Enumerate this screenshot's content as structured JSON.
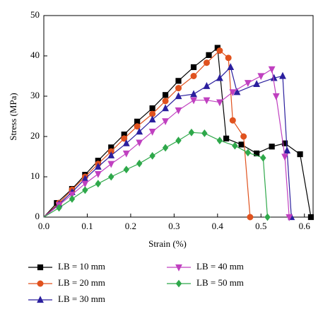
{
  "chart_data": {
    "type": "line",
    "x_label": "Strain (%)",
    "y_label": "Stress (MPa)",
    "xlim": [
      0,
      0.62
    ],
    "ylim": [
      0,
      50
    ],
    "xticks": [
      {
        "value": 0,
        "label": "0.0"
      },
      0.1,
      0.2,
      0.3,
      0.4,
      0.5,
      0.6
    ],
    "yticks": [
      0,
      10,
      20,
      30,
      40,
      50
    ],
    "series": [
      {
        "name": "LB = 10 mm",
        "color": "#000000",
        "marker": "square",
        "x": [
          0,
          0.03,
          0.065,
          0.095,
          0.125,
          0.155,
          0.185,
          0.215,
          0.25,
          0.28,
          0.31,
          0.345,
          0.38,
          0.4,
          0.42,
          0.455,
          0.49,
          0.525,
          0.555,
          0.59,
          0.615
        ],
        "values": [
          0,
          3.5,
          7,
          10.5,
          14,
          17.3,
          20.5,
          23.7,
          27,
          30.3,
          33.8,
          37.2,
          40.2,
          42,
          19.5,
          18,
          15.8,
          17.5,
          18.3,
          15.6,
          0
        ]
      },
      {
        "name": "LB = 20 mm",
        "color": "#e0521e",
        "marker": "circle",
        "x": [
          0,
          0.035,
          0.065,
          0.095,
          0.125,
          0.155,
          0.185,
          0.215,
          0.25,
          0.28,
          0.31,
          0.345,
          0.375,
          0.405,
          0.425,
          0.435,
          0.46,
          0.475
        ],
        "values": [
          0,
          3.5,
          6.8,
          10,
          13.2,
          16.3,
          19.5,
          22.5,
          25.6,
          28.8,
          32,
          35,
          38.3,
          41.3,
          39.5,
          24,
          20,
          0
        ]
      },
      {
        "name": "LB = 30 mm",
        "color": "#2b1f9e",
        "marker": "triangle-up",
        "x": [
          0,
          0.035,
          0.065,
          0.095,
          0.125,
          0.155,
          0.19,
          0.22,
          0.25,
          0.28,
          0.31,
          0.345,
          0.375,
          0.405,
          0.43,
          0.445,
          0.49,
          0.53,
          0.55,
          0.56,
          0.57
        ],
        "values": [
          0,
          3.2,
          6.2,
          9.5,
          12.5,
          15.3,
          18.3,
          21.2,
          24.2,
          27,
          30,
          30.5,
          32.5,
          34.5,
          37.2,
          31,
          33,
          34.5,
          35,
          16.5,
          0
        ]
      },
      {
        "name": "LB = 40 mm",
        "color": "#c040c0",
        "marker": "triangle-down",
        "x": [
          0,
          0.035,
          0.065,
          0.095,
          0.125,
          0.155,
          0.19,
          0.22,
          0.25,
          0.28,
          0.31,
          0.345,
          0.375,
          0.405,
          0.435,
          0.47,
          0.5,
          0.525,
          0.535,
          0.555,
          0.565
        ],
        "values": [
          0,
          3,
          5.6,
          8.3,
          10.7,
          13.2,
          15.8,
          18.5,
          21.2,
          23.8,
          26.5,
          29,
          29,
          28.5,
          31,
          33.3,
          35,
          36.7,
          30,
          15,
          0
        ]
      },
      {
        "name": "LB = 50 mm",
        "color": "#2ea84a",
        "marker": "diamond",
        "x": [
          0,
          0.035,
          0.065,
          0.095,
          0.125,
          0.155,
          0.19,
          0.22,
          0.25,
          0.28,
          0.31,
          0.34,
          0.37,
          0.405,
          0.44,
          0.47,
          0.505,
          0.515
        ],
        "values": [
          0,
          2.3,
          4.5,
          6.7,
          8.3,
          10,
          11.8,
          13.3,
          15.2,
          17.2,
          19,
          21,
          20.8,
          19,
          17.7,
          16,
          14.7,
          0
        ]
      }
    ]
  }
}
